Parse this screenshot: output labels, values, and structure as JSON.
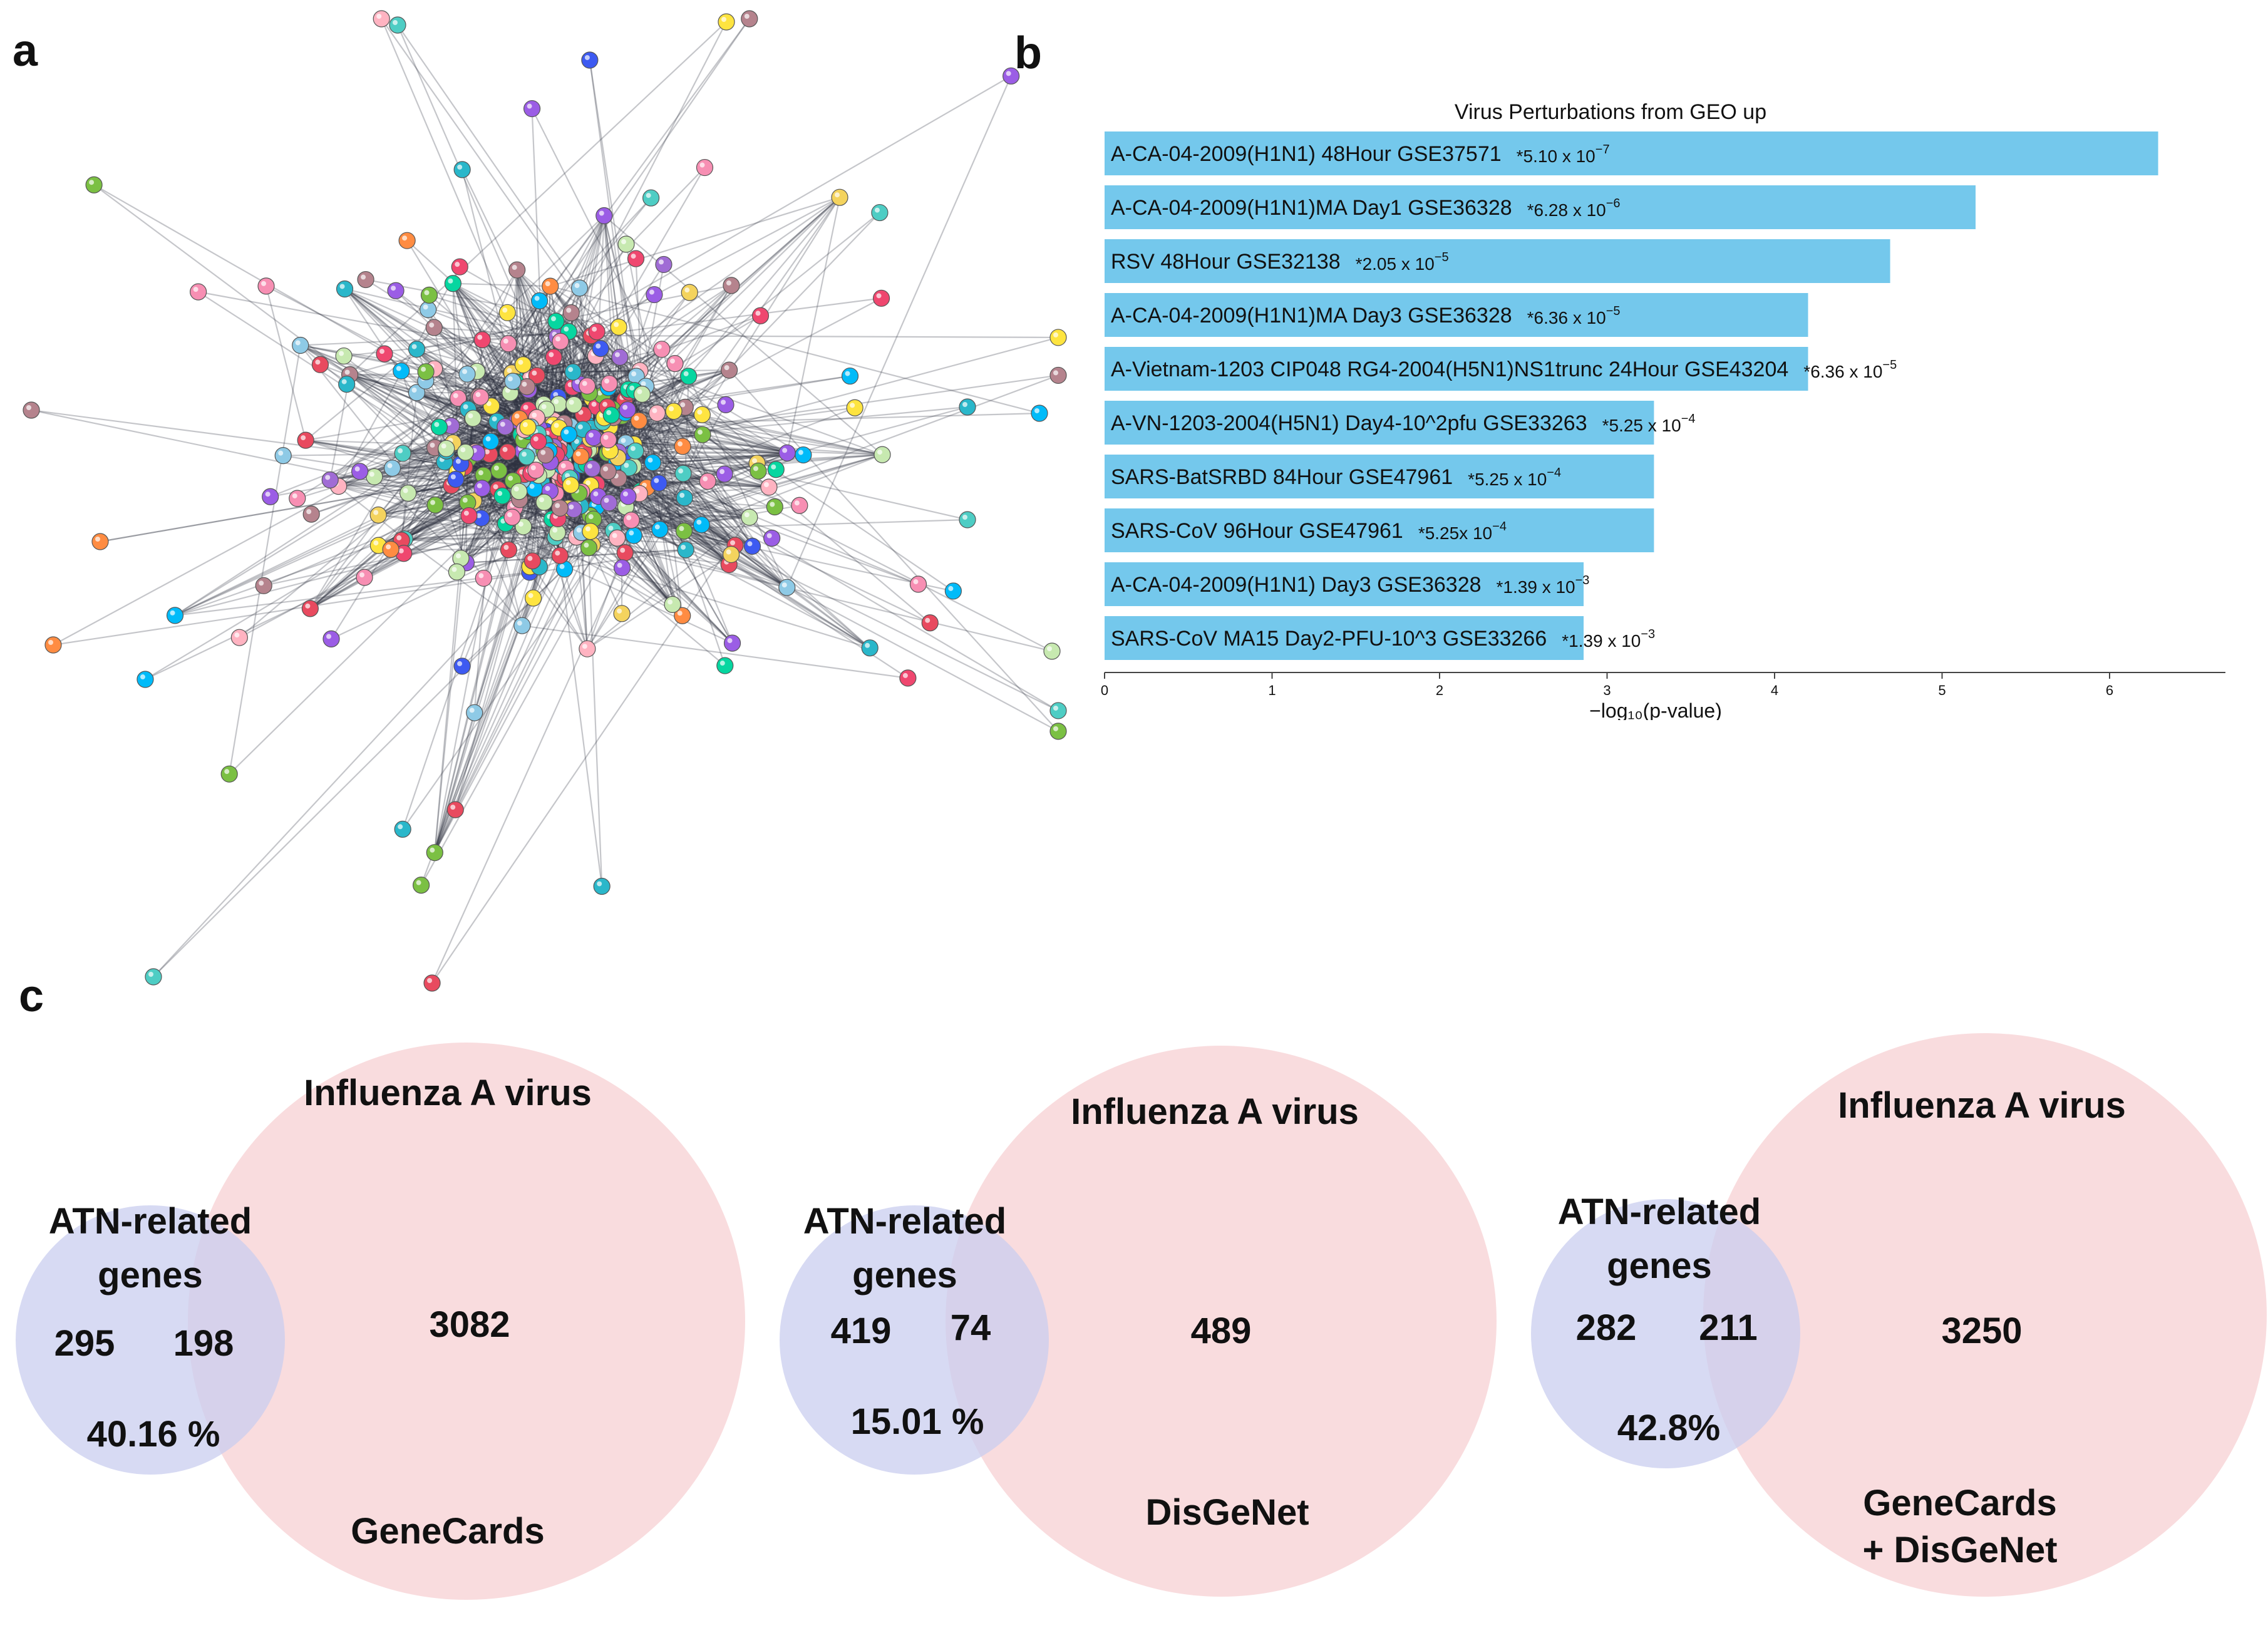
{
  "panels": {
    "a": "a",
    "b": "b",
    "c": "c"
  },
  "network": {
    "description_icon": "protein-interaction-network"
  },
  "chart_data": {
    "type": "bar",
    "orientation": "horizontal",
    "title": "Virus Perturbations from GEO up",
    "xlabel": "−log₁₀(p-value)",
    "xlim": [
      0,
      6.6
    ],
    "xticks": [
      "0",
      "1",
      "2",
      "3",
      "4",
      "5",
      "6"
    ],
    "bar_color": "#74c8ec",
    "categories": [
      "A-CA-04-2009(H1N1) 48Hour GSE37571",
      "A-CA-04-2009(H1N1)MA Day1 GSE36328",
      "RSV 48Hour GSE32138",
      "A-CA-04-2009(H1N1)MA Day3 GSE36328",
      "A-Vietnam-1203 CIP048 RG4-2004(H5N1)NS1trunc 24Hour GSE43204",
      "A-VN-1203-2004(H5N1) Day4-10^2pfu GSE33263",
      "SARS-BatSRBD 84Hour GSE47961",
      "SARS-CoV 96Hour GSE47961",
      "A-CA-04-2009(H1N1) Day3 GSE36328",
      "SARS-CoV MA15 Day2-PFU-10^3 GSE33266"
    ],
    "values": [
      6.29,
      5.2,
      4.69,
      4.2,
      4.2,
      3.28,
      3.28,
      3.28,
      2.86,
      2.86
    ],
    "pvalues": [
      {
        "base": "*5.10 x 10",
        "exp": "−7"
      },
      {
        "base": "*6.28 x 10",
        "exp": "−6"
      },
      {
        "base": "*2.05 x 10",
        "exp": "−5"
      },
      {
        "base": "*6.36 x 10",
        "exp": "−5"
      },
      {
        "base": "*6.36 x 10",
        "exp": "−5"
      },
      {
        "base": "*5.25 x 10",
        "exp": "−4"
      },
      {
        "base": "*5.25 x 10",
        "exp": "−4"
      },
      {
        "base": "*5.25x 10",
        "exp": "−4"
      },
      {
        "base": "*1.39 x 10",
        "exp": "−3"
      },
      {
        "base": "*1.39 x 10",
        "exp": "−3"
      }
    ]
  },
  "venn": [
    {
      "left_title": [
        "ATN-related",
        "genes"
      ],
      "right_title": "Influenza A virus",
      "left_only": "295",
      "overlap": "198",
      "right_only": "3082",
      "percent": "40.16 %",
      "source": [
        "GeneCards"
      ]
    },
    {
      "left_title": [
        "ATN-related",
        "genes"
      ],
      "right_title": "Influenza A virus",
      "left_only": "419",
      "overlap": "74",
      "right_only": "489",
      "percent": "15.01 %",
      "source": [
        "DisGeNet"
      ]
    },
    {
      "left_title": [
        "ATN-related",
        "genes"
      ],
      "right_title": "Influenza A virus",
      "left_only": "282",
      "overlap": "211",
      "right_only": "3250",
      "percent": "42.8%",
      "source": [
        "GeneCards",
        "+ DisGeNet"
      ]
    }
  ],
  "colors": {
    "venn_left": "#c9cdef",
    "venn_right": "#f8d6d8",
    "venn_overlap": "#d8c2e3",
    "edge": "#2e3440"
  }
}
